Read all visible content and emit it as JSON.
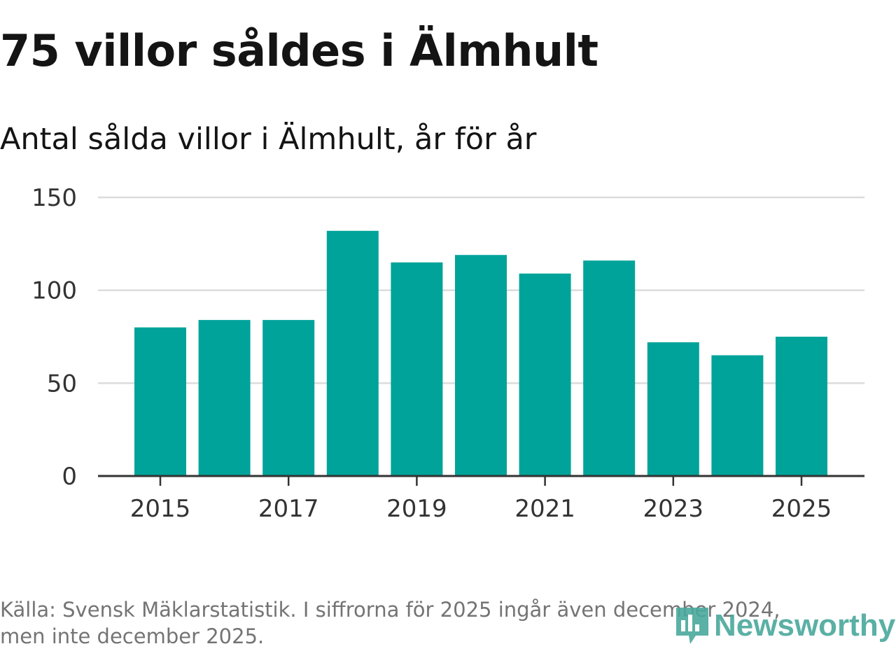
{
  "header": {
    "title": "75 villor såldes i Älmhult",
    "subtitle": "Antal sålda villor i Älmhult, år för år"
  },
  "chart_data": {
    "type": "bar",
    "title": "75 villor såldes i Älmhult",
    "subtitle": "Antal sålda villor i Älmhult, år för år",
    "categories": [
      "2015",
      "2016",
      "2017",
      "2018",
      "2019",
      "2020",
      "2021",
      "2022",
      "2023",
      "2024",
      "2025"
    ],
    "values": [
      80,
      84,
      84,
      132,
      115,
      119,
      109,
      116,
      72,
      65,
      75
    ],
    "x_tick_labels": [
      "2015",
      "2017",
      "2019",
      "2021",
      "2023",
      "2025"
    ],
    "y_ticks": [
      0,
      50,
      100,
      150
    ],
    "ylim": [
      0,
      150
    ],
    "xlabel": "",
    "ylabel": "",
    "grid": true,
    "bar_color": "#00a39a"
  },
  "footer": {
    "source_line1": "Källa: Svensk Mäklarstatistik. I siffrorna för 2025 ingår även december 2024,",
    "source_line2": "men inte december 2025."
  },
  "logo": {
    "text": "Newsworthy",
    "color": "#4aa89c",
    "icon": "newsworthy-logo-icon"
  }
}
